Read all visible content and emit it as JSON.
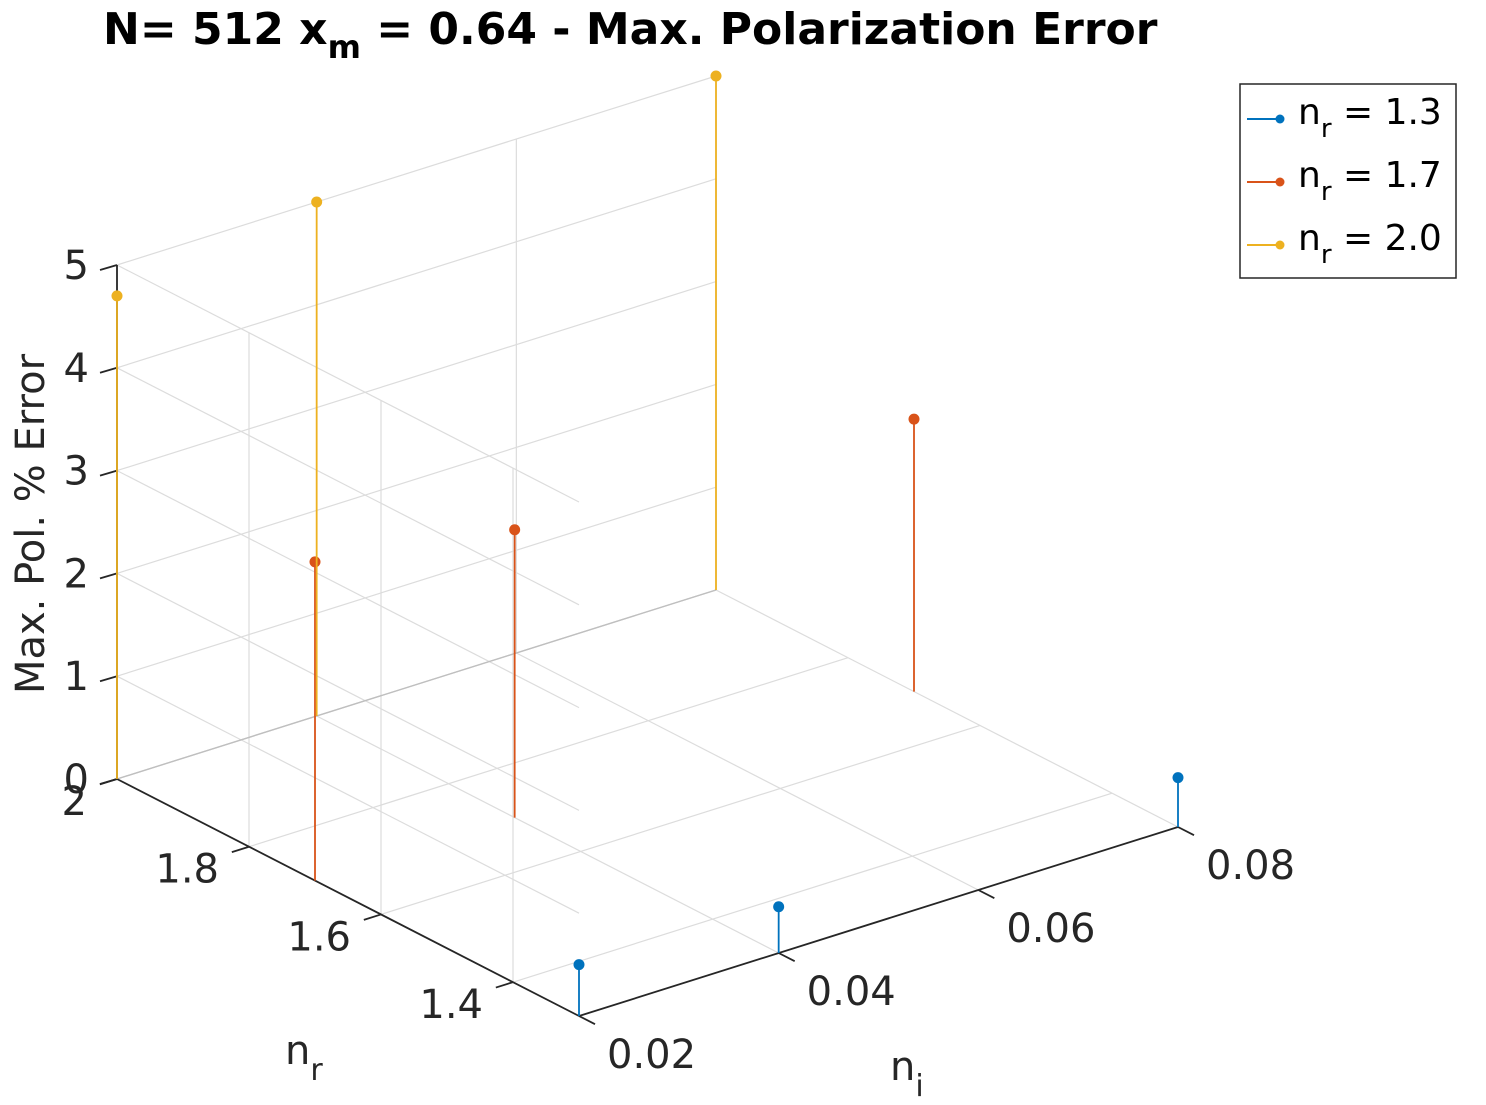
{
  "chart_data": {
    "type": "stem3d",
    "title": {
      "prefix": "N= 512 x",
      "sub": "m",
      "suffix": " = 0.64 - Max. Polarization Error"
    },
    "xlabel": {
      "base": "n",
      "sub": "i"
    },
    "ylabel": {
      "base": "n",
      "sub": "r"
    },
    "zlabel": "Max. Pol.  % Error",
    "xlim": [
      0.02,
      0.08
    ],
    "ylim": [
      1.3,
      2.0
    ],
    "zlim": [
      0,
      5
    ],
    "x_ticks": [
      "0.02",
      "0.04",
      "0.06",
      "0.08"
    ],
    "y_ticks": [
      "1.4",
      "1.6",
      "1.8",
      "2"
    ],
    "z_ticks": [
      "0",
      "1",
      "2",
      "3",
      "4",
      "5"
    ],
    "grid": true,
    "legend_position": "top-right outside",
    "series": [
      {
        "name": {
          "base": "n",
          "sub": "r",
          "rest": " = 1.3"
        },
        "color": "#0072bd",
        "points": [
          {
            "x": 0.02,
            "y": 1.3,
            "z": 0.5
          },
          {
            "x": 0.04,
            "y": 1.3,
            "z": 0.45
          },
          {
            "x": 0.08,
            "y": 1.3,
            "z": 0.48
          }
        ]
      },
      {
        "name": {
          "base": "n",
          "sub": "r",
          "rest": " = 1.7"
        },
        "color": "#d95319",
        "points": [
          {
            "x": 0.02,
            "y": 1.7,
            "z": 3.1
          },
          {
            "x": 0.04,
            "y": 1.7,
            "z": 2.8
          },
          {
            "x": 0.08,
            "y": 1.7,
            "z": 2.65
          }
        ]
      },
      {
        "name": {
          "base": "n",
          "sub": "r",
          "rest": " = 2.0"
        },
        "color": "#edb120",
        "points": [
          {
            "x": 0.02,
            "y": 2.0,
            "z": 4.7
          },
          {
            "x": 0.04,
            "y": 2.0,
            "z": 5.0
          },
          {
            "x": 0.08,
            "y": 2.0,
            "z": 5.0
          }
        ]
      }
    ]
  }
}
